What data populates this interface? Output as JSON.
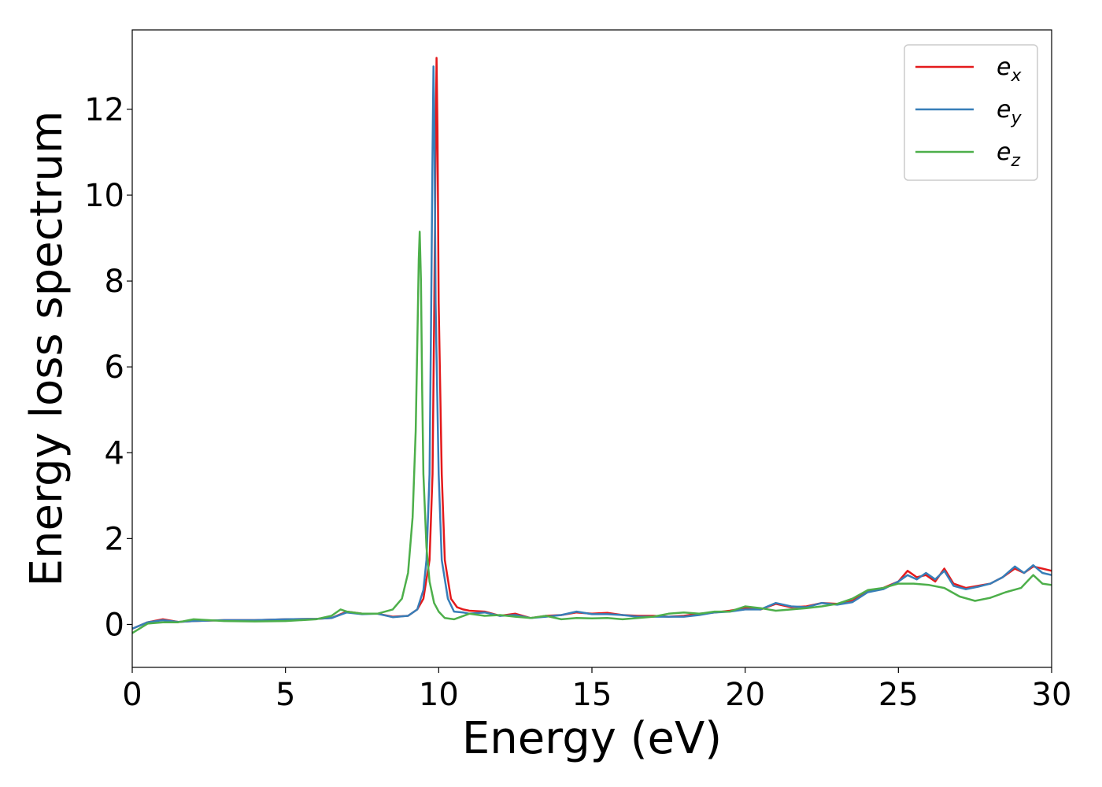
{
  "chart_data": {
    "type": "line",
    "xlabel": "Energy (eV)",
    "ylabel": "Energy loss spectrum",
    "xlim": [
      0,
      30
    ],
    "ylim": [
      -1.0,
      13.85
    ],
    "xticks": [
      0,
      5,
      10,
      15,
      20,
      25,
      30
    ],
    "yticks": [
      0,
      2,
      4,
      6,
      8,
      10,
      12
    ],
    "grid": false,
    "legend_position": "top-right",
    "series": [
      {
        "name": "e_x",
        "legend_base": "e",
        "legend_sub": "x",
        "color": "#e41a1c",
        "x": [
          0,
          0.5,
          1.0,
          1.5,
          2.0,
          3.0,
          4.0,
          5.0,
          6.0,
          6.5,
          7.0,
          7.5,
          8.0,
          8.5,
          9.0,
          9.3,
          9.5,
          9.7,
          9.8,
          9.85,
          9.9,
          9.93,
          9.96,
          10.0,
          10.1,
          10.2,
          10.4,
          10.6,
          10.8,
          11.0,
          11.5,
          12.0,
          12.5,
          13.0,
          13.5,
          14.0,
          14.5,
          15.0,
          15.5,
          16.0,
          16.5,
          17.0,
          17.5,
          18.0,
          18.5,
          19.0,
          19.5,
          20.0,
          20.5,
          21.0,
          21.5,
          22.0,
          22.5,
          23.0,
          23.5,
          24.0,
          24.5,
          25.0,
          25.3,
          25.6,
          25.9,
          26.2,
          26.5,
          26.8,
          27.2,
          27.6,
          28.0,
          28.4,
          28.8,
          29.1,
          29.4,
          29.7,
          30.0
        ],
        "y": [
          -0.1,
          0.05,
          0.12,
          0.06,
          0.08,
          0.1,
          0.1,
          0.12,
          0.13,
          0.15,
          0.3,
          0.25,
          0.25,
          0.18,
          0.2,
          0.35,
          0.6,
          1.5,
          3.5,
          7.0,
          11.0,
          13.2,
          11.5,
          7.5,
          3.5,
          1.5,
          0.6,
          0.4,
          0.35,
          0.32,
          0.3,
          0.2,
          0.25,
          0.15,
          0.2,
          0.22,
          0.28,
          0.25,
          0.27,
          0.22,
          0.2,
          0.2,
          0.18,
          0.2,
          0.25,
          0.28,
          0.32,
          0.38,
          0.35,
          0.48,
          0.4,
          0.42,
          0.5,
          0.48,
          0.55,
          0.78,
          0.85,
          1.0,
          1.25,
          1.1,
          1.15,
          1.0,
          1.3,
          0.95,
          0.85,
          0.9,
          0.95,
          1.1,
          1.3,
          1.2,
          1.35,
          1.3,
          1.25
        ]
      },
      {
        "name": "e_y",
        "legend_base": "e",
        "legend_sub": "y",
        "color": "#377eb8",
        "x": [
          0,
          0.5,
          1.0,
          1.5,
          2.0,
          3.0,
          4.0,
          5.0,
          6.0,
          6.5,
          7.0,
          7.5,
          8.0,
          8.5,
          9.0,
          9.3,
          9.5,
          9.6,
          9.7,
          9.75,
          9.8,
          9.83,
          9.86,
          9.9,
          10.0,
          10.1,
          10.3,
          10.5,
          10.8,
          11.0,
          11.5,
          12.0,
          12.5,
          13.0,
          13.5,
          14.0,
          14.5,
          15.0,
          15.5,
          16.0,
          16.5,
          17.0,
          17.5,
          18.0,
          18.5,
          19.0,
          19.5,
          20.0,
          20.5,
          21.0,
          21.5,
          22.0,
          22.5,
          23.0,
          23.5,
          24.0,
          24.5,
          25.0,
          25.3,
          25.6,
          25.9,
          26.2,
          26.5,
          26.8,
          27.2,
          27.6,
          28.0,
          28.4,
          28.8,
          29.1,
          29.4,
          29.7,
          30.0
        ],
        "y": [
          -0.1,
          0.05,
          0.1,
          0.06,
          0.08,
          0.1,
          0.1,
          0.12,
          0.13,
          0.15,
          0.28,
          0.24,
          0.25,
          0.17,
          0.2,
          0.35,
          0.8,
          1.5,
          3.5,
          7.0,
          11.0,
          13.0,
          11.5,
          7.5,
          3.5,
          1.5,
          0.6,
          0.3,
          0.28,
          0.25,
          0.28,
          0.2,
          0.22,
          0.15,
          0.18,
          0.22,
          0.3,
          0.24,
          0.24,
          0.22,
          0.18,
          0.18,
          0.18,
          0.18,
          0.22,
          0.28,
          0.3,
          0.35,
          0.35,
          0.5,
          0.42,
          0.4,
          0.5,
          0.46,
          0.52,
          0.75,
          0.82,
          1.0,
          1.15,
          1.05,
          1.2,
          1.05,
          1.25,
          0.9,
          0.82,
          0.88,
          0.95,
          1.1,
          1.35,
          1.2,
          1.38,
          1.2,
          1.15
        ]
      },
      {
        "name": "e_z",
        "legend_base": "e",
        "legend_sub": "z",
        "color": "#4daf4a",
        "x": [
          0,
          0.5,
          1.0,
          1.5,
          2.0,
          2.5,
          3.0,
          4.0,
          5.0,
          6.0,
          6.5,
          6.8,
          7.0,
          7.5,
          8.0,
          8.5,
          8.8,
          9.0,
          9.15,
          9.25,
          9.3,
          9.35,
          9.38,
          9.42,
          9.46,
          9.5,
          9.6,
          9.7,
          9.85,
          10.0,
          10.2,
          10.5,
          11.0,
          11.5,
          12.0,
          12.5,
          13.0,
          13.5,
          14.0,
          14.5,
          15.0,
          15.5,
          16.0,
          16.5,
          17.0,
          17.5,
          18.0,
          18.5,
          19.0,
          19.5,
          20.0,
          20.5,
          21.0,
          21.5,
          22.0,
          22.5,
          23.0,
          23.5,
          24.0,
          24.5,
          25.0,
          25.5,
          26.0,
          26.5,
          27.0,
          27.5,
          28.0,
          28.5,
          29.0,
          29.4,
          29.7,
          30.0
        ],
        "y": [
          -0.2,
          0.02,
          0.05,
          0.05,
          0.12,
          0.1,
          0.08,
          0.07,
          0.08,
          0.12,
          0.2,
          0.35,
          0.3,
          0.25,
          0.25,
          0.35,
          0.6,
          1.2,
          2.5,
          4.5,
          6.5,
          8.5,
          9.15,
          8.0,
          5.5,
          3.5,
          1.8,
          1.0,
          0.5,
          0.3,
          0.15,
          0.12,
          0.25,
          0.2,
          0.22,
          0.18,
          0.15,
          0.2,
          0.12,
          0.15,
          0.14,
          0.15,
          0.12,
          0.15,
          0.18,
          0.25,
          0.28,
          0.25,
          0.3,
          0.3,
          0.42,
          0.38,
          0.32,
          0.35,
          0.38,
          0.42,
          0.48,
          0.6,
          0.8,
          0.85,
          0.95,
          0.95,
          0.92,
          0.85,
          0.65,
          0.55,
          0.62,
          0.75,
          0.85,
          1.15,
          0.95,
          0.92
        ]
      }
    ]
  }
}
